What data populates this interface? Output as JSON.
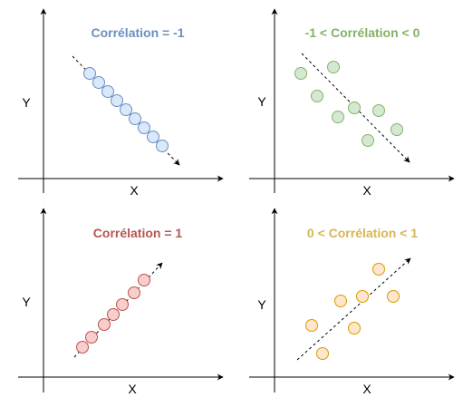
{
  "colors": {
    "axis": "#000000"
  },
  "panels": [
    {
      "id": "negative-perfect",
      "title": "Corrélation = -1",
      "xlabel": "X",
      "ylabel": "Y",
      "title_color": "#6C8EBF",
      "point_fill": "#DAE8FC",
      "point_stroke": "#6C8EBF",
      "trend_direction": "down",
      "points_count": 9
    },
    {
      "id": "negative-partial",
      "title": "-1 < Corrélation < 0",
      "xlabel": "X",
      "ylabel": "Y",
      "title_color": "#82B366",
      "point_fill": "#D5E8D4",
      "point_stroke": "#82B366",
      "trend_direction": "down",
      "points_count": 9
    },
    {
      "id": "positive-perfect",
      "title": "Corrélation = 1",
      "xlabel": "X",
      "ylabel": "Y",
      "title_color": "#B85450",
      "point_fill": "#F8CECC",
      "point_stroke": "#B85450",
      "trend_direction": "up",
      "points_count": 7
    },
    {
      "id": "positive-partial",
      "title": "0 < Corrélation < 1",
      "xlabel": "X",
      "ylabel": "Y",
      "title_color": "#D6B656",
      "point_fill": "#FFE6CC",
      "point_stroke": "#D79B00",
      "trend_direction": "up",
      "points_count": 7
    }
  ]
}
